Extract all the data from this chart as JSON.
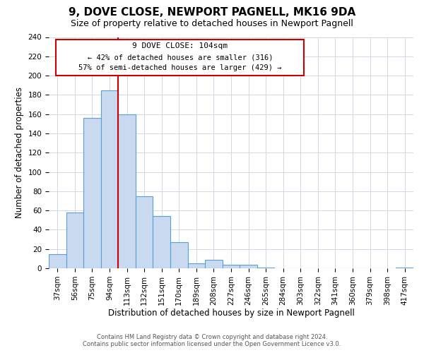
{
  "title": "9, DOVE CLOSE, NEWPORT PAGNELL, MK16 9DA",
  "subtitle": "Size of property relative to detached houses in Newport Pagnell",
  "xlabel": "Distribution of detached houses by size in Newport Pagnell",
  "ylabel": "Number of detached properties",
  "bar_labels": [
    "37sqm",
    "56sqm",
    "75sqm",
    "94sqm",
    "113sqm",
    "132sqm",
    "151sqm",
    "170sqm",
    "189sqm",
    "208sqm",
    "227sqm",
    "246sqm",
    "265sqm",
    "284sqm",
    "303sqm",
    "322sqm",
    "341sqm",
    "360sqm",
    "379sqm",
    "398sqm",
    "417sqm"
  ],
  "bar_values": [
    15,
    58,
    156,
    185,
    160,
    75,
    54,
    27,
    5,
    9,
    4,
    4,
    1,
    0,
    0,
    0,
    0,
    0,
    0,
    0,
    1
  ],
  "bar_color": "#c8d9f0",
  "bar_edge_color": "#5a9fd4",
  "ylim": [
    0,
    240
  ],
  "yticks": [
    0,
    20,
    40,
    60,
    80,
    100,
    120,
    140,
    160,
    180,
    200,
    220,
    240
  ],
  "vline_x": 3.5,
  "vline_color": "#cc0000",
  "annotation_text_line1": "9 DOVE CLOSE: 104sqm",
  "annotation_text_line2": "← 42% of detached houses are smaller (316)",
  "annotation_text_line3": "57% of semi-detached houses are larger (429) →",
  "annotation_box_color": "#ffffff",
  "annotation_box_edge": "#cc0000",
  "footer_line1": "Contains HM Land Registry data © Crown copyright and database right 2024.",
  "footer_line2": "Contains public sector information licensed under the Open Government Licence v3.0.",
  "title_fontsize": 11,
  "subtitle_fontsize": 9,
  "axis_label_fontsize": 8.5,
  "tick_fontsize": 7.5,
  "annotation_fontsize1": 8,
  "annotation_fontsize2": 7.5,
  "background_color": "#ffffff",
  "grid_color": "#d0d8e8"
}
